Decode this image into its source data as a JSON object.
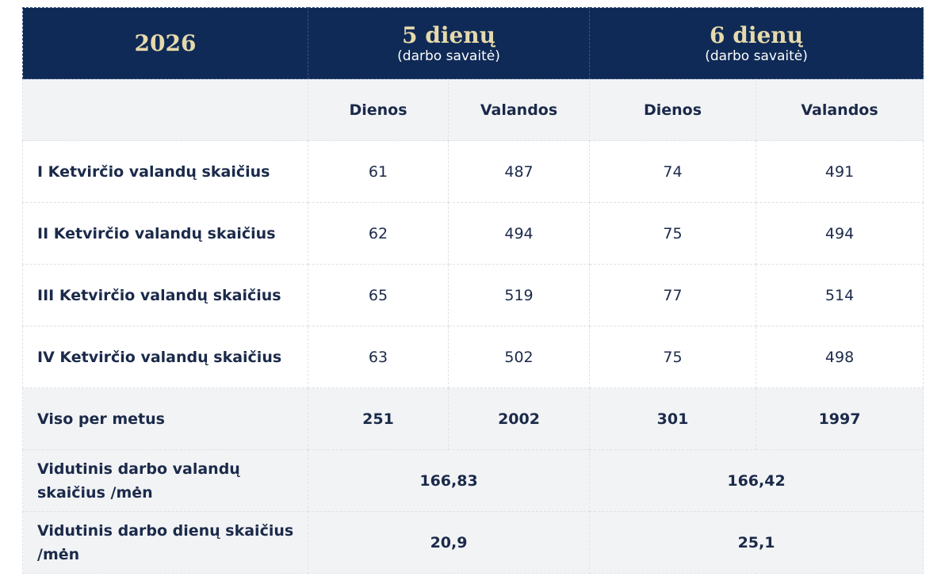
{
  "header": {
    "year": "2026",
    "groups": [
      {
        "title": "5 dienų",
        "subtitle": "(darbo savaitė)"
      },
      {
        "title": "6 dienų",
        "subtitle": "(darbo savaitė)"
      }
    ]
  },
  "subheader": [
    "Dienos",
    "Valandos",
    "Dienos",
    "Valandos"
  ],
  "rows": [
    {
      "label": "I Ketvirčio valandų skaičius",
      "values": [
        61,
        487,
        74,
        491
      ]
    },
    {
      "label": "II Ketvirčio valandų skaičius",
      "values": [
        62,
        494,
        75,
        494
      ]
    },
    {
      "label": "III Ketvirčio valandų skaičius",
      "values": [
        65,
        519,
        77,
        514
      ]
    },
    {
      "label": "IV Ketvirčio valandų skaičius",
      "values": [
        63,
        502,
        75,
        498
      ]
    }
  ],
  "total": {
    "label": "Viso per metus",
    "values": [
      251,
      2002,
      301,
      1997
    ]
  },
  "averages": [
    {
      "label": "Vidutinis darbo valandų skaičius /mėn",
      "values": [
        "166,83",
        "166,42"
      ]
    },
    {
      "label": "Vidutinis darbo dienų skaičius /mėn",
      "values": [
        "20,9",
        "25,1"
      ]
    }
  ]
}
